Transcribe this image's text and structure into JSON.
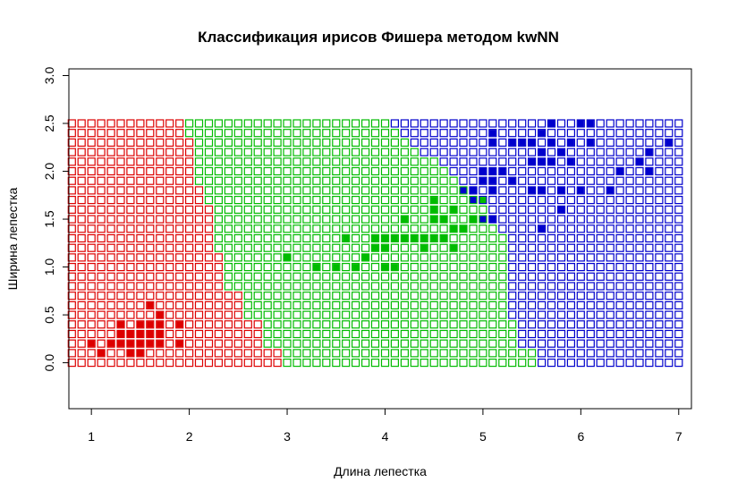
{
  "chart_data": {
    "type": "scatter",
    "title": "Классификация ирисов Фишера методом kwNN",
    "xlabel": "Длина лепестка",
    "ylabel": "Ширина лепестка",
    "xlim": [
      0.77,
      7.13
    ],
    "ylim": [
      -0.48,
      3.07
    ],
    "xticks": [
      1,
      2,
      3,
      4,
      5,
      6,
      7
    ],
    "yticks": [
      0.0,
      0.5,
      1.0,
      1.5,
      2.0,
      2.5,
      3.0
    ],
    "ytick_labels": [
      "0.0",
      "0.5",
      "1.0",
      "1.5",
      "2.0",
      "2.5",
      "3.0"
    ],
    "grid": false,
    "colors": {
      "setosa": "#dd0000",
      "versicolor": "#00bb00",
      "virginica": "#0000cc"
    },
    "classification_map": {
      "x_range": [
        0.8,
        7.0
      ],
      "x_step": 0.1,
      "y_range": [
        0.0,
        2.5
      ],
      "y_step": 0.1,
      "marker": "open-square",
      "boundaries_by_y": {
        "y": [
          0.0,
          0.1,
          0.2,
          0.3,
          0.4,
          0.5,
          0.6,
          0.7,
          0.8,
          0.9,
          1.0,
          1.1,
          1.2,
          1.3,
          1.4,
          1.5,
          1.6,
          1.7,
          1.8,
          1.9,
          2.0,
          2.1,
          2.2,
          2.3,
          2.4,
          2.5
        ],
        "setosa_max_x": [
          2.9,
          2.9,
          2.7,
          2.7,
          2.7,
          2.5,
          2.5,
          2.5,
          2.3,
          2.3,
          2.3,
          2.3,
          2.2,
          2.2,
          2.2,
          2.2,
          2.2,
          2.1,
          2.1,
          2.0,
          2.0,
          2.0,
          2.0,
          2.0,
          1.9,
          1.9
        ],
        "versicolor_max_x": [
          5.5,
          5.5,
          5.3,
          5.3,
          5.3,
          5.2,
          5.2,
          5.2,
          5.2,
          5.2,
          5.2,
          5.2,
          5.2,
          5.2,
          5.1,
          5.0,
          5.0,
          4.9,
          4.8,
          4.7,
          4.6,
          4.5,
          4.3,
          4.2,
          4.1,
          4.0
        ]
      }
    },
    "series": [
      {
        "class": "setosa",
        "marker": "filled-square",
        "points": [
          [
            1.1,
            0.1
          ],
          [
            1.4,
            0.1
          ],
          [
            1.5,
            0.1
          ],
          [
            1.0,
            0.2
          ],
          [
            1.2,
            0.2
          ],
          [
            1.3,
            0.2
          ],
          [
            1.4,
            0.2
          ],
          [
            1.5,
            0.2
          ],
          [
            1.6,
            0.2
          ],
          [
            1.7,
            0.2
          ],
          [
            1.9,
            0.2
          ],
          [
            1.3,
            0.3
          ],
          [
            1.4,
            0.3
          ],
          [
            1.5,
            0.3
          ],
          [
            1.6,
            0.3
          ],
          [
            1.7,
            0.3
          ],
          [
            1.3,
            0.4
          ],
          [
            1.5,
            0.4
          ],
          [
            1.6,
            0.4
          ],
          [
            1.7,
            0.4
          ],
          [
            1.9,
            0.4
          ],
          [
            1.7,
            0.5
          ],
          [
            1.6,
            0.6
          ]
        ]
      },
      {
        "class": "versicolor",
        "marker": "filled-square",
        "points": [
          [
            3.3,
            1.0
          ],
          [
            3.5,
            1.0
          ],
          [
            3.7,
            1.0
          ],
          [
            4.0,
            1.0
          ],
          [
            4.1,
            1.0
          ],
          [
            3.0,
            1.1
          ],
          [
            3.8,
            1.1
          ],
          [
            3.9,
            1.2
          ],
          [
            4.0,
            1.2
          ],
          [
            4.4,
            1.2
          ],
          [
            4.7,
            1.2
          ],
          [
            3.6,
            1.3
          ],
          [
            3.9,
            1.3
          ],
          [
            4.0,
            1.3
          ],
          [
            4.1,
            1.3
          ],
          [
            4.2,
            1.3
          ],
          [
            4.3,
            1.3
          ],
          [
            4.4,
            1.3
          ],
          [
            4.5,
            1.3
          ],
          [
            4.6,
            1.3
          ],
          [
            4.7,
            1.4
          ],
          [
            4.8,
            1.4
          ],
          [
            4.2,
            1.5
          ],
          [
            4.5,
            1.5
          ],
          [
            4.6,
            1.5
          ],
          [
            4.9,
            1.5
          ],
          [
            4.5,
            1.6
          ],
          [
            4.7,
            1.6
          ],
          [
            5.0,
            1.7
          ],
          [
            4.5,
            1.7
          ]
        ]
      },
      {
        "class": "virginica",
        "marker": "filled-square",
        "points": [
          [
            5.0,
            1.5
          ],
          [
            5.1,
            1.5
          ],
          [
            4.8,
            1.8
          ],
          [
            4.9,
            1.8
          ],
          [
            5.1,
            1.8
          ],
          [
            5.5,
            1.8
          ],
          [
            5.6,
            1.8
          ],
          [
            5.8,
            1.8
          ],
          [
            6.0,
            1.8
          ],
          [
            6.3,
            1.8
          ],
          [
            5.0,
            1.9
          ],
          [
            5.1,
            1.9
          ],
          [
            5.3,
            1.9
          ],
          [
            5.0,
            2.0
          ],
          [
            5.1,
            2.0
          ],
          [
            5.2,
            2.0
          ],
          [
            6.4,
            2.0
          ],
          [
            6.7,
            2.0
          ],
          [
            5.5,
            2.1
          ],
          [
            5.6,
            2.1
          ],
          [
            5.7,
            2.1
          ],
          [
            5.9,
            2.1
          ],
          [
            6.6,
            2.1
          ],
          [
            5.6,
            2.2
          ],
          [
            5.8,
            2.2
          ],
          [
            6.7,
            2.2
          ],
          [
            5.1,
            2.3
          ],
          [
            5.3,
            2.3
          ],
          [
            5.4,
            2.3
          ],
          [
            5.5,
            2.3
          ],
          [
            5.7,
            2.3
          ],
          [
            5.9,
            2.3
          ],
          [
            6.1,
            2.3
          ],
          [
            6.9,
            2.3
          ],
          [
            5.1,
            2.4
          ],
          [
            5.6,
            2.4
          ],
          [
            5.7,
            2.5
          ],
          [
            6.0,
            2.5
          ],
          [
            6.1,
            2.5
          ],
          [
            5.8,
            1.6
          ],
          [
            5.6,
            1.4
          ],
          [
            4.9,
            1.7
          ]
        ]
      }
    ]
  }
}
